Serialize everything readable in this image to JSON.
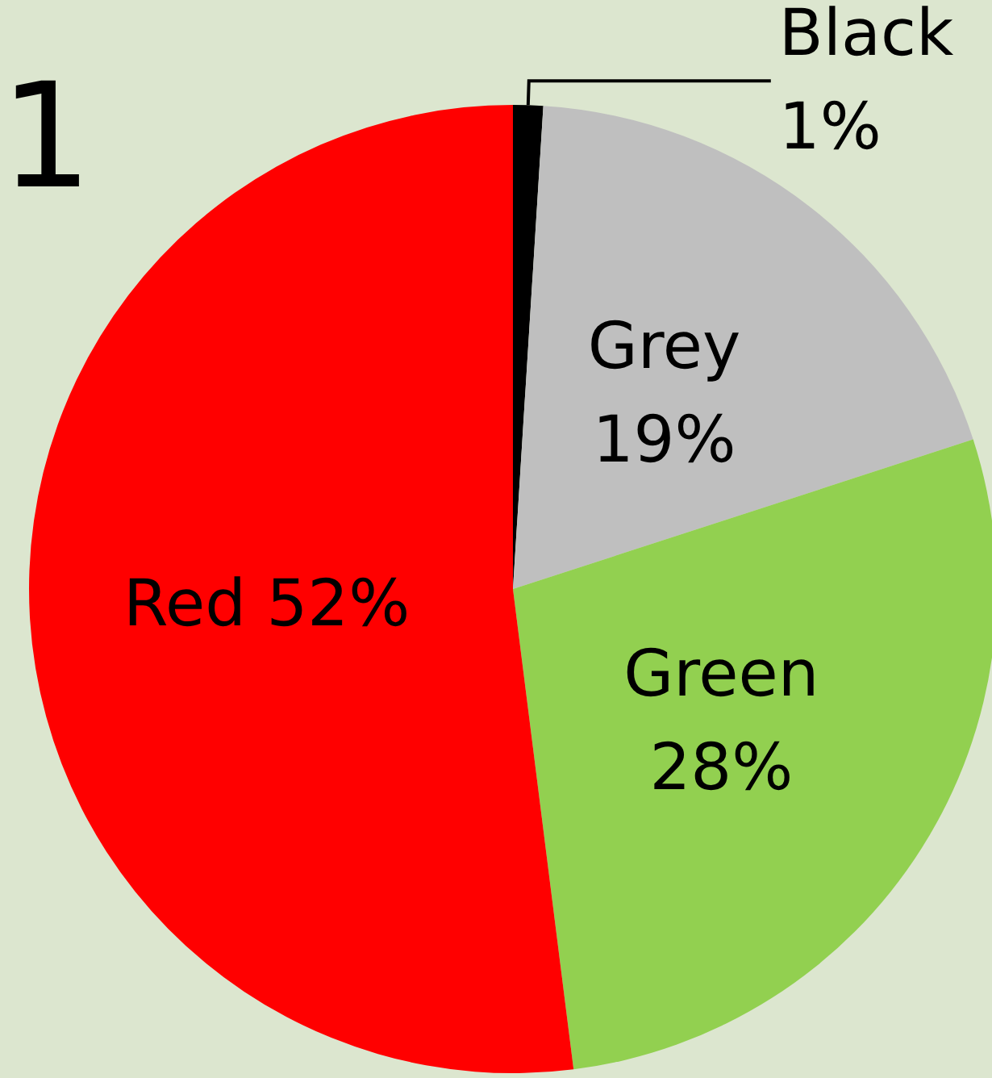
{
  "chart_data": {
    "type": "pie",
    "annotations": [
      "1"
    ],
    "categories": [
      "Black",
      "Grey",
      "Green",
      "Red"
    ],
    "values": [
      1,
      19,
      28,
      52
    ],
    "colors": [
      "#000000",
      "#bfbfbf",
      "#92d050",
      "#ff0000"
    ],
    "value_labels": [
      "1%",
      "19%",
      "28%",
      "52%"
    ],
    "legend": false
  }
}
